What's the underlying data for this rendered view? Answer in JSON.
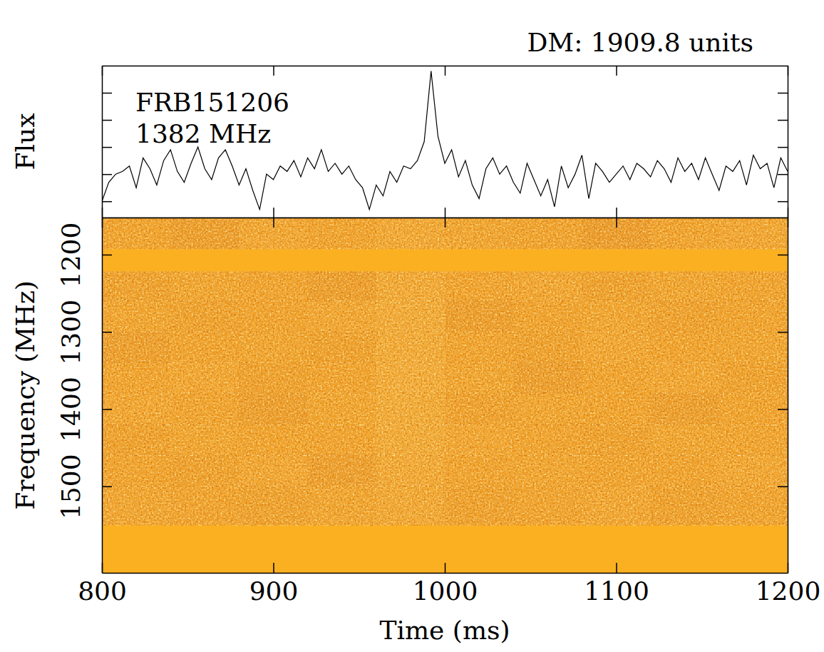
{
  "chart_data": [
    {
      "type": "line",
      "title": "DM: 1909.8 units",
      "annotations": [
        "FRB151206",
        "1382 MHz"
      ],
      "y_label": "Flux",
      "color": "#000000",
      "tick_labels": false,
      "xlim": [
        800,
        1200
      ],
      "ylim": [
        -1.6,
        4
      ],
      "xticks": [
        800,
        900,
        1000,
        1100,
        1200
      ],
      "yticks": [
        -1,
        0,
        1,
        2,
        3
      ],
      "x": [
        800,
        804,
        808,
        812,
        816,
        820,
        824,
        828,
        832,
        836,
        840,
        844,
        848,
        852,
        856,
        860,
        864,
        868,
        872,
        876,
        880,
        884,
        888,
        892,
        896,
        900,
        904,
        908,
        912,
        916,
        920,
        924,
        928,
        932,
        936,
        940,
        944,
        948,
        952,
        956,
        960,
        964,
        968,
        972,
        976,
        980,
        984,
        988,
        992,
        996,
        1000,
        1004,
        1008,
        1012,
        1016,
        1020,
        1024,
        1028,
        1032,
        1036,
        1040,
        1044,
        1048,
        1052,
        1056,
        1060,
        1064,
        1068,
        1072,
        1076,
        1080,
        1084,
        1088,
        1092,
        1096,
        1100,
        1104,
        1108,
        1112,
        1116,
        1120,
        1124,
        1128,
        1132,
        1136,
        1140,
        1144,
        1148,
        1152,
        1156,
        1160,
        1164,
        1168,
        1172,
        1176,
        1180,
        1184,
        1188,
        1192,
        1196,
        1200
      ],
      "values": [
        -1.0,
        -0.3,
        0.0,
        0.1,
        0.3,
        -0.5,
        0.6,
        0.2,
        -0.4,
        0.5,
        0.9,
        0.1,
        -0.3,
        0.4,
        1.0,
        0.2,
        -0.2,
        0.6,
        0.9,
        0.3,
        -0.4,
        0.2,
        -0.6,
        -1.3,
        0.0,
        -0.2,
        0.3,
        0.1,
        0.5,
        -0.1,
        0.6,
        0.2,
        0.9,
        0.1,
        0.4,
        0.0,
        0.3,
        -0.2,
        -0.5,
        -1.3,
        -0.4,
        -0.8,
        0.1,
        -0.3,
        0.3,
        0.2,
        0.5,
        1.2,
        3.8,
        1.4,
        0.4,
        0.9,
        -0.1,
        0.5,
        -0.4,
        -0.9,
        0.2,
        0.6,
        0.0,
        0.3,
        -0.3,
        -0.7,
        0.4,
        -0.2,
        -0.8,
        -0.2,
        -1.2,
        0.3,
        -0.5,
        0.0,
        0.7,
        -0.9,
        0.4,
        0.1,
        -0.3,
        0.0,
        0.3,
        -0.2,
        0.4,
        0.2,
        -0.1,
        0.5,
        0.2,
        -0.3,
        0.6,
        0.1,
        0.4,
        -0.2,
        0.6,
        0.0,
        -0.6,
        0.3,
        0.1,
        0.5,
        -0.4,
        0.7,
        0.2,
        0.4,
        -0.5,
        0.6,
        0.1
      ]
    },
    {
      "type": "heatmap",
      "x_label": "Time (ms)",
      "y_label": "Frequency (MHz)",
      "color": "#fbb022",
      "xlim": [
        800,
        1200
      ],
      "ylim": [
        1612,
        1152
      ],
      "xticks": [
        800,
        900,
        1000,
        1100,
        1200
      ],
      "yticks": [
        1200,
        1300,
        1400,
        1500
      ],
      "x_edges": [
        800,
        840,
        880,
        920,
        960,
        1000,
        1040,
        1080,
        1120,
        1160,
        1200
      ],
      "y_edges": [
        1152,
        1193,
        1222,
        1260,
        1300,
        1340,
        1380,
        1420,
        1460,
        1500,
        1551,
        1612
      ],
      "zlim": [
        0,
        1
      ],
      "cells": [
        [
          0.5,
          0.48,
          0.52,
          0.5,
          0.53,
          0.51,
          0.5,
          0.47,
          0.5,
          0.52
        ],
        [
          null,
          null,
          null,
          null,
          null,
          null,
          null,
          null,
          null,
          null
        ],
        [
          0.49,
          0.51,
          0.5,
          0.48,
          0.54,
          0.5,
          0.52,
          0.49,
          0.51,
          0.5
        ],
        [
          0.51,
          0.49,
          0.5,
          0.52,
          0.55,
          0.48,
          0.5,
          0.51,
          0.49,
          0.5
        ],
        [
          0.48,
          0.5,
          0.51,
          0.49,
          0.55,
          0.5,
          0.49,
          0.52,
          0.5,
          0.51
        ],
        [
          0.5,
          0.52,
          0.49,
          0.5,
          0.56,
          0.51,
          0.48,
          0.5,
          0.52,
          0.49
        ],
        [
          0.52,
          0.5,
          0.48,
          0.51,
          0.55,
          0.49,
          0.51,
          0.5,
          0.48,
          0.5
        ],
        [
          0.49,
          0.51,
          0.5,
          0.5,
          0.55,
          0.52,
          0.5,
          0.49,
          0.51,
          0.5
        ],
        [
          0.5,
          0.49,
          0.52,
          0.48,
          0.54,
          0.5,
          0.51,
          0.5,
          0.5,
          0.52
        ],
        [
          0.51,
          0.5,
          0.49,
          0.51,
          0.53,
          0.49,
          0.5,
          0.52,
          0.49,
          0.5
        ],
        [
          null,
          null,
          null,
          null,
          null,
          null,
          null,
          null,
          null,
          null
        ]
      ]
    }
  ]
}
